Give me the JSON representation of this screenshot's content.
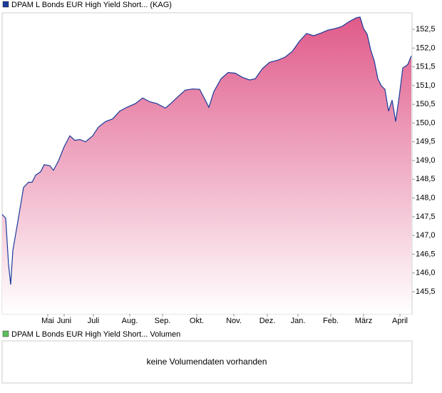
{
  "chart_data": {
    "type": "area",
    "legend": "DPAM L Bonds EUR High Yield Short... (KAG)",
    "x": [
      0,
      5,
      9,
      12,
      15,
      22,
      30,
      37,
      42,
      47,
      54,
      59,
      67,
      72,
      79,
      87,
      95,
      102,
      109,
      117,
      127,
      135,
      145,
      155,
      165,
      175,
      187,
      197,
      207,
      217,
      229,
      237,
      247,
      257,
      267,
      277,
      285,
      290,
      297,
      307,
      317,
      327,
      337,
      347,
      355,
      365,
      375,
      387,
      397,
      407,
      417,
      427,
      437,
      447,
      457,
      467,
      477,
      487,
      497,
      502,
      507,
      512,
      517,
      522,
      527,
      532,
      537,
      542,
      547,
      552,
      557,
      562,
      569,
      574
    ],
    "series": [
      {
        "name": "DPAM L Bonds EUR High Yield Short... (KAG)",
        "color": "#1a3a9a",
        "values": [
          147.56,
          147.46,
          146.22,
          145.69,
          146.6,
          147.37,
          148.28,
          148.42,
          148.42,
          148.61,
          148.7,
          148.89,
          148.86,
          148.74,
          148.99,
          149.37,
          149.66,
          149.54,
          149.56,
          149.5,
          149.66,
          149.89,
          150.04,
          150.11,
          150.32,
          150.42,
          150.52,
          150.67,
          150.57,
          150.52,
          150.4,
          150.53,
          150.71,
          150.88,
          150.91,
          150.9,
          150.61,
          150.42,
          150.84,
          151.18,
          151.35,
          151.33,
          151.22,
          151.15,
          151.18,
          151.45,
          151.62,
          151.68,
          151.76,
          151.91,
          152.18,
          152.39,
          152.33,
          152.4,
          152.48,
          152.52,
          152.58,
          152.71,
          152.81,
          152.83,
          152.52,
          152.37,
          151.95,
          151.66,
          151.18,
          150.99,
          150.9,
          150.32,
          150.61,
          150.04,
          150.71,
          151.47,
          151.56,
          151.79
        ]
      }
    ],
    "fill_top": "#e05a8a",
    "xlim": [
      0,
      575
    ],
    "xticks": [
      {
        "value": 64,
        "label": "Mai"
      },
      {
        "value": 87,
        "label": "Juni"
      },
      {
        "value": 128,
        "label": "Juli"
      },
      {
        "value": 179,
        "label": "Aug."
      },
      {
        "value": 225,
        "label": "Sep."
      },
      {
        "value": 273,
        "label": "Okt."
      },
      {
        "value": 325,
        "label": "Nov."
      },
      {
        "value": 372,
        "label": "Dez."
      },
      {
        "value": 415,
        "label": "Jan."
      },
      {
        "value": 461,
        "label": "Feb."
      },
      {
        "value": 507,
        "label": "März"
      },
      {
        "value": 558,
        "label": "April"
      }
    ],
    "ylim": [
      144.91,
      152.94
    ],
    "yticks": [
      {
        "value": 145.5,
        "label": "145,5"
      },
      {
        "value": 146,
        "label": "146,0"
      },
      {
        "value": 146.5,
        "label": "146,5"
      },
      {
        "value": 147,
        "label": "147,0"
      },
      {
        "value": 147.5,
        "label": "147,5"
      },
      {
        "value": 148,
        "label": "148,0"
      },
      {
        "value": 148.5,
        "label": "148,5"
      },
      {
        "value": 149,
        "label": "149,0"
      },
      {
        "value": 149.5,
        "label": "149,5"
      },
      {
        "value": 150,
        "label": "150,0"
      },
      {
        "value": 150.5,
        "label": "150,5"
      },
      {
        "value": 151,
        "label": "151,0"
      },
      {
        "value": 151.5,
        "label": "151,5"
      },
      {
        "value": 152,
        "label": "152,0"
      },
      {
        "value": 152.5,
        "label": "152,5"
      }
    ],
    "volume_legend": "DPAM L Bonds EUR High Yield Short... Volumen",
    "volume_legend_color": "#5cbf5c",
    "volume_message": "keine Volumendaten vorhanden"
  }
}
